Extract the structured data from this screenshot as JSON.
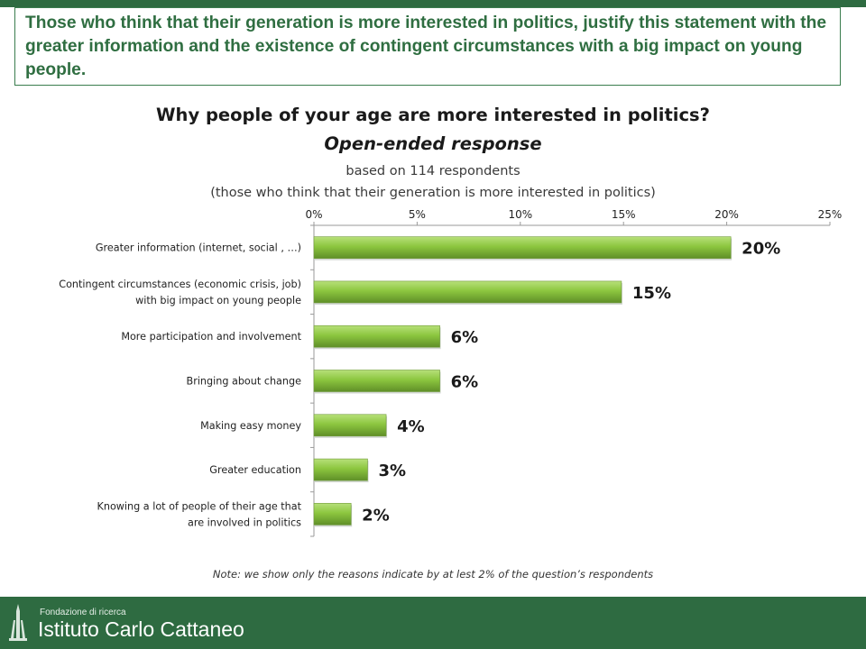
{
  "headline": "Those who think that their generation is more interested in politics, justify this statement with the greater information and the existence of contingent circumstances with a big impact on young people.",
  "footer": {
    "org_line": "Fondazione di ricerca",
    "name": "Istituto Carlo Cattaneo"
  },
  "colors": {
    "brand_green": "#2e6b41",
    "bar_green": "#8cc63f",
    "bar_green_dark": "#5f8f28"
  },
  "chart_data": {
    "type": "bar",
    "orientation": "horizontal",
    "title": "Why people of your age are more interested in politics?",
    "subtitle": "Open-ended response",
    "base": "based on 114 respondents",
    "base_note": "(those who think that their generation is more interested in politics)",
    "xlim": [
      0,
      25
    ],
    "ticks": [
      "0%",
      "5%",
      "10%",
      "15%",
      "20%",
      "25%"
    ],
    "categories": [
      [
        "Greater information (internet, social , …)"
      ],
      [
        "Contingent circumstances (economic crisis, job)",
        "with big impact on young people"
      ],
      [
        "More participation and involvement"
      ],
      [
        "Bringing about change"
      ],
      [
        "Making easy money"
      ],
      [
        "Greater education"
      ],
      [
        "Knowing a lot of people of their age that",
        "are involved in politics"
      ]
    ],
    "values": [
      20.2,
      14.9,
      6.1,
      6.1,
      3.5,
      2.6,
      1.8
    ],
    "value_labels": [
      "20%",
      "15%",
      "6%",
      "6%",
      "4%",
      "3%",
      "2%"
    ],
    "note": "Note: we show only the reasons indicate by at lest 2% of the question’s respondents"
  }
}
